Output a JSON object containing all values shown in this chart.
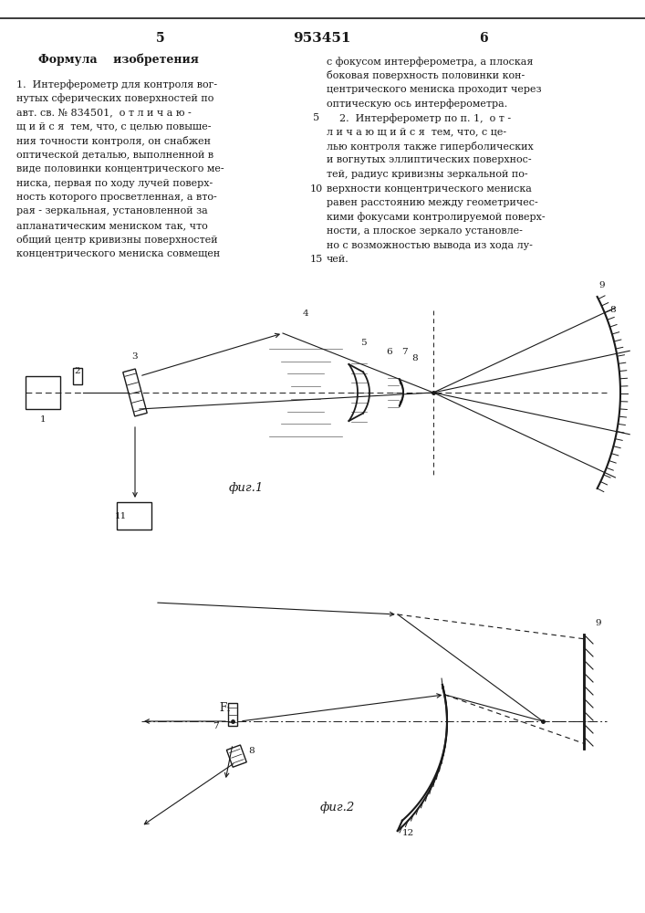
{
  "page_bg": "#ffffff",
  "text_color": "#1a1a1a",
  "line_color": "#1a1a1a",
  "title": "953451",
  "page_num_left": "5",
  "page_num_right": "6",
  "header_left": "Формула    изобретения",
  "text_left_lines": [
    "1.  Интерферометр для контроля вог-",
    "нутых сферических поверхностей по",
    "авт. св. № 834501,  о т л и ч а ю -",
    "щ и й с я  тем, что, с целью повыше-",
    "ния точности контроля, он снабжен",
    "оптической деталью, выполненной в",
    "виде половинки концентрического ме-",
    "ниска, первая по ходу лучей поверх-",
    "ность которого просветленная, а вто-",
    "рая - зеркальная, установленной за",
    "апланатическим мениском так, что",
    "общий центр кривизны поверхностей",
    "концентрического мениска совмещен"
  ],
  "text_right_lines": [
    "с фокусом интерферометра, а плоская",
    "боковая поверхность половинки кон-",
    "центрического мениска проходит через",
    "оптическую ось интерферометра.",
    "    2.  Интерферометр по п. 1,  о т -",
    "л и ч а ю щ и й с я  тем, что, с це-",
    "лью контроля также гиперболических",
    "и вогнутых эллиптических поверхнос-",
    "тей, радиус кривизны зеркальной по-",
    "верхности концентрического мениска",
    "равен расстоянию между геометричес-",
    "кими фокусами контролируемой поверх-",
    "ности, а плоское зеркало установле-",
    "но с возможностью вывода из хода лу-",
    "чей."
  ],
  "line_numbers": [
    5,
    10,
    15
  ],
  "line_number_rows": [
    4,
    9,
    14
  ],
  "fig1_caption": "фиг.1",
  "fig2_caption": "фиг.2"
}
